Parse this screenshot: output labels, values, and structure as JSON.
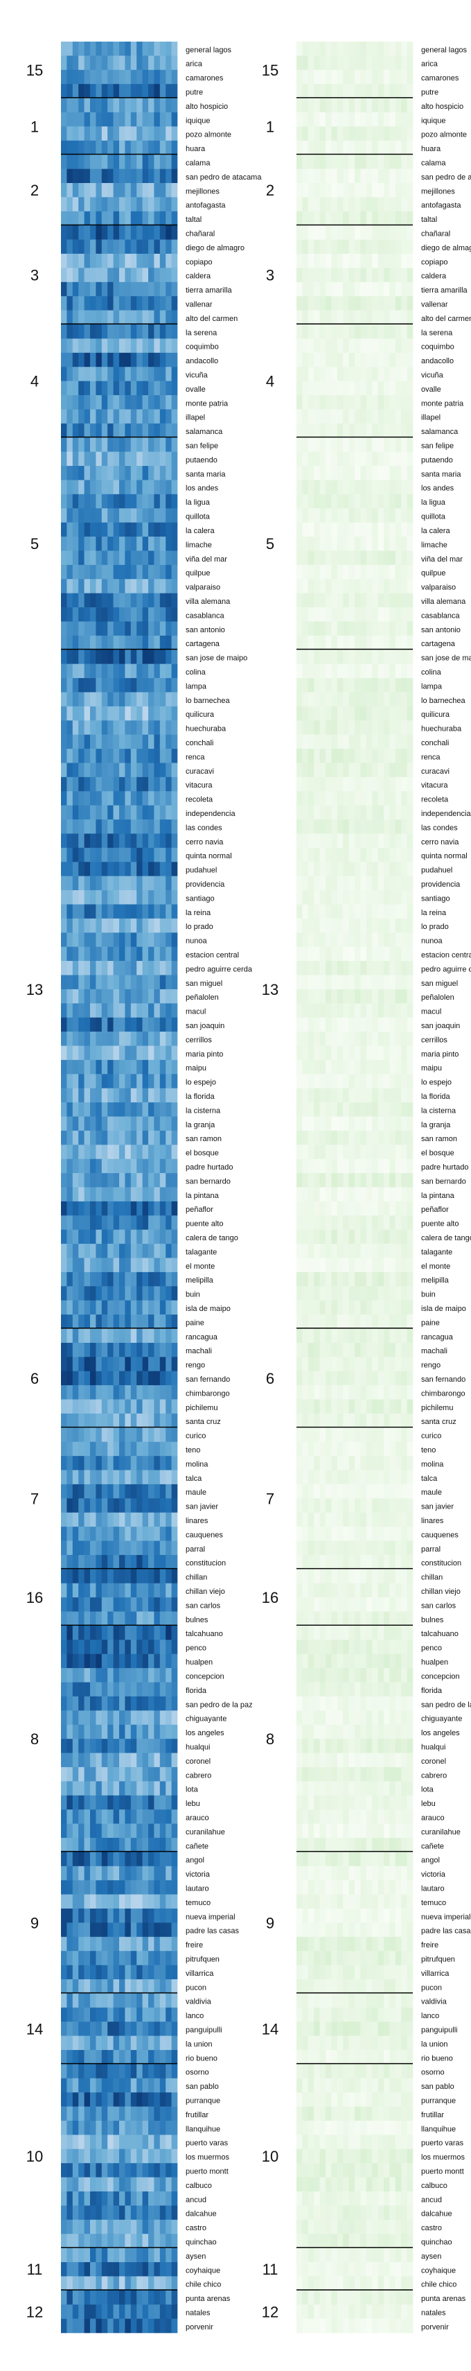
{
  "chart_data": [
    {
      "type": "heatmap",
      "colormap": "blues",
      "title": "",
      "xlabel": "",
      "ylabel": "",
      "region_order": [
        "15",
        "1",
        "2",
        "3",
        "4",
        "5",
        "13",
        "6",
        "7",
        "16",
        "8",
        "9",
        "14",
        "10",
        "11",
        "12"
      ],
      "regions": [
        {
          "label": "15",
          "communes": [
            "general lagos",
            "arica",
            "camarones",
            "putre"
          ]
        },
        {
          "label": "1",
          "communes": [
            "alto hospicio",
            "iquique",
            "pozo almonte",
            "huara"
          ]
        },
        {
          "label": "2",
          "communes": [
            "calama",
            "san pedro de atacama",
            "mejillones",
            "antofagasta",
            "taltal"
          ]
        },
        {
          "label": "3",
          "communes": [
            "chañaral",
            "diego de almagro",
            "copiapo",
            "caldera",
            "tierra amarilla",
            "vallenar",
            "alto del carmen"
          ]
        },
        {
          "label": "4",
          "communes": [
            "la serena",
            "coquimbo",
            "andacollo",
            "vicuña",
            "ovalle",
            "monte patria",
            "illapel",
            "salamanca"
          ]
        },
        {
          "label": "5",
          "communes": [
            "san felipe",
            "putaendo",
            "santa maria",
            "los andes",
            "la ligua",
            "quillota",
            "la calera",
            "limache",
            "viña del mar",
            "quilpue",
            "valparaiso",
            "villa alemana",
            "casablanca",
            "san antonio",
            "cartagena"
          ]
        },
        {
          "label": "13",
          "communes": [
            "san jose de maipo",
            "colina",
            "lampa",
            "lo barnechea",
            "quilicura",
            "huechuraba",
            "conchali",
            "renca",
            "curacavi",
            "vitacura",
            "recoleta",
            "independencia",
            "las condes",
            "cerro navia",
            "quinta normal",
            "pudahuel",
            "providencia",
            "santiago",
            "la reina",
            "lo prado",
            "nunoa",
            "estacion central",
            "pedro aguirre cerda",
            "san miguel",
            "peñalolen",
            "macul",
            "san joaquin",
            "cerrillos",
            "maria pinto",
            "maipu",
            "lo espejo",
            "la florida",
            "la cisterna",
            "la granja",
            "san ramon",
            "el bosque",
            "padre hurtado",
            "san bernardo",
            "la pintana",
            "peñaflor",
            "puente alto",
            "calera de tango",
            "talagante",
            "el monte",
            "melipilla",
            "buin",
            "isla de maipo",
            "paine"
          ]
        },
        {
          "label": "6",
          "communes": [
            "rancagua",
            "machali",
            "rengo",
            "san fernando",
            "chimbarongo",
            "pichilemu",
            "santa cruz"
          ]
        },
        {
          "label": "7",
          "communes": [
            "curico",
            "teno",
            "molina",
            "talca",
            "maule",
            "san javier",
            "linares",
            "cauquenes",
            "parral",
            "constitucion"
          ]
        },
        {
          "label": "16",
          "communes": [
            "chillan",
            "chillan viejo",
            "san carlos",
            "bulnes"
          ]
        },
        {
          "label": "8",
          "communes": [
            "talcahuano",
            "penco",
            "hualpen",
            "concepcion",
            "florida",
            "san pedro de la paz",
            "chiguayante",
            "los angeles",
            "hualqui",
            "coronel",
            "cabrero",
            "lota",
            "lebu",
            "arauco",
            "curanilahue",
            "cañete"
          ]
        },
        {
          "label": "9",
          "communes": [
            "angol",
            "victoria",
            "lautaro",
            "temuco",
            "nueva imperial",
            "padre las casas",
            "freire",
            "pitrufquen",
            "villarrica",
            "pucon"
          ]
        },
        {
          "label": "14",
          "communes": [
            "valdivia",
            "lanco",
            "panguipulli",
            "la union",
            "rio bueno"
          ]
        },
        {
          "label": "10",
          "communes": [
            "osorno",
            "san pablo",
            "purranque",
            "frutillar",
            "llanquihue",
            "puerto varas",
            "los muermos",
            "puerto montt",
            "calbuco",
            "ancud",
            "dalcahue",
            "castro",
            "quinchao"
          ]
        },
        {
          "label": "11",
          "communes": [
            "aysen",
            "coyhaique",
            "chile chico"
          ]
        },
        {
          "label": "12",
          "communes": [
            "punta arenas",
            "natales",
            "porvenir"
          ]
        }
      ]
    },
    {
      "type": "heatmap",
      "colormap": "greens",
      "title": "",
      "xlabel": "",
      "ylabel": "",
      "region_order": [
        "15",
        "1",
        "2",
        "3",
        "4",
        "5",
        "13",
        "6",
        "7",
        "16",
        "8",
        "9",
        "14",
        "10",
        "11",
        "12"
      ]
    }
  ]
}
